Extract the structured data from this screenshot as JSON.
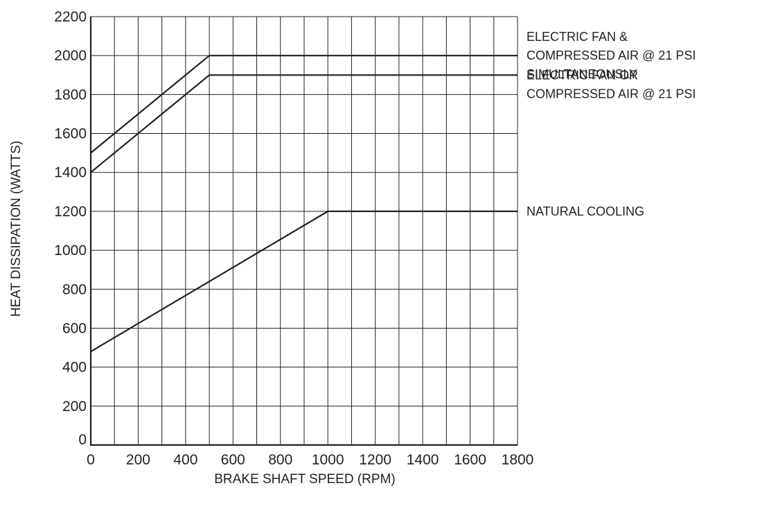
{
  "chart_data": {
    "type": "line",
    "title": "",
    "xlabel": "BRAKE SHAFT SPEED  (RPM)",
    "ylabel": "HEAT DISSIPATION   (WATTS)",
    "xlim": [
      0,
      1800
    ],
    "ylim": [
      0,
      2200
    ],
    "x_ticks": [
      0,
      200,
      400,
      600,
      800,
      1000,
      1200,
      1400,
      1600,
      1800
    ],
    "y_ticks": [
      0,
      200,
      400,
      600,
      800,
      1000,
      1200,
      1400,
      1600,
      1800,
      2000,
      2200
    ],
    "x_tick_labels": [
      "0",
      "200",
      "400",
      "600",
      "800",
      "1000",
      "1200",
      "1400",
      "1600",
      "1800"
    ],
    "y_tick_labels": [
      "0",
      "200",
      "400",
      "600",
      "800",
      "1000",
      "1200",
      "1400",
      "1600",
      "1800",
      "2000",
      "2200"
    ],
    "grid": true,
    "grid_x_step": 100,
    "grid_y_step": 200,
    "legend": "direct labels at right end of each line",
    "series": [
      {
        "name_lines": [
          "ELECTRIC FAN &",
          "COMPRESSED AIR @ 21 PSI",
          "SIMULTANEOUSLY"
        ],
        "points": [
          [
            0,
            1500
          ],
          [
            500,
            2000
          ],
          [
            1800,
            2000
          ]
        ]
      },
      {
        "name_lines": [
          "ELECTRIC FAN  OR",
          "COMPRESSED AIR @ 21 PSI"
        ],
        "points": [
          [
            0,
            1400
          ],
          [
            500,
            1900
          ],
          [
            1800,
            1900
          ]
        ]
      },
      {
        "name_lines": [
          "NATURAL COOLING"
        ],
        "points": [
          [
            0,
            480
          ],
          [
            1000,
            1200
          ],
          [
            1800,
            1200
          ]
        ]
      }
    ],
    "colors": {
      "line": "#231f20",
      "grid": "#231f20",
      "background": "#ffffff"
    }
  }
}
